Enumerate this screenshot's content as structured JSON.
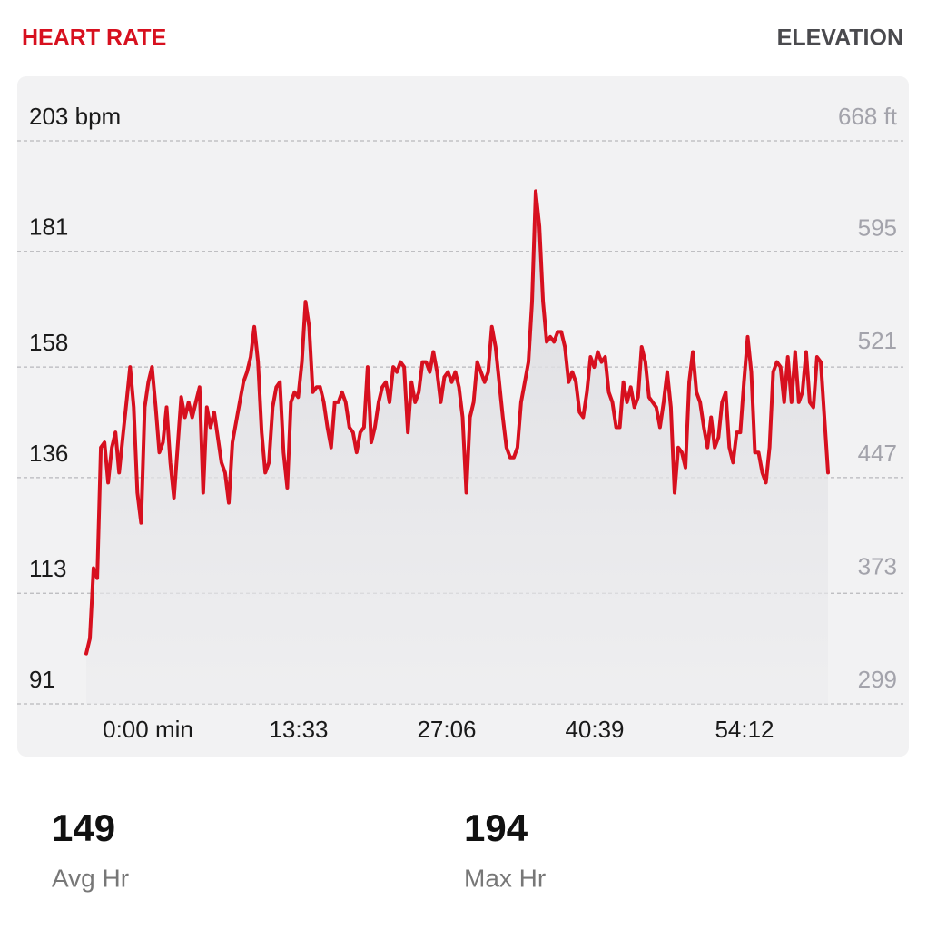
{
  "header": {
    "left_title": "HEART RATE",
    "right_title": "ELEVATION"
  },
  "chart_data": {
    "type": "line",
    "color": "#d7101f",
    "fill": true,
    "grid": true,
    "ylim": [
      91,
      203
    ],
    "yticks": [
      {
        "value": 203,
        "label": "203 bpm"
      },
      181,
      158,
      136,
      113,
      91
    ],
    "y2lim": [
      299,
      668
    ],
    "y2ticks": [
      {
        "value": 668,
        "label": "668 ft"
      },
      595,
      521,
      447,
      373,
      299
    ],
    "xtick_labels": [
      "0:00 min",
      "13:33",
      "27:06",
      "40:39",
      "54:12"
    ],
    "values": [
      101,
      104,
      118,
      116,
      142,
      143,
      135,
      142,
      145,
      137,
      144,
      151,
      158,
      150,
      133,
      127,
      150,
      155,
      158,
      150,
      141,
      143,
      150,
      139,
      132,
      142,
      152,
      148,
      151,
      148,
      151,
      154,
      133,
      150,
      146,
      149,
      144,
      139,
      137,
      131,
      143,
      147,
      151,
      155,
      157,
      160,
      166,
      159,
      145,
      137,
      139,
      150,
      154,
      155,
      141,
      134,
      151,
      153,
      152,
      159,
      171,
      166,
      153,
      154,
      154,
      151,
      146,
      142,
      151,
      151,
      153,
      151,
      146,
      145,
      141,
      145,
      146,
      158,
      143,
      146,
      151,
      154,
      155,
      151,
      158,
      157,
      159,
      158,
      145,
      155,
      151,
      153,
      159,
      159,
      157,
      161,
      157,
      151,
      156,
      157,
      155,
      157,
      154,
      148,
      133,
      148,
      151,
      159,
      157,
      155,
      157,
      166,
      162,
      155,
      148,
      142,
      140,
      140,
      142,
      151,
      155,
      159,
      171,
      193,
      186,
      171,
      163,
      164,
      163,
      165,
      165,
      162,
      155,
      157,
      155,
      149,
      148,
      153,
      160,
      158,
      161,
      159,
      160,
      153,
      151,
      146,
      146,
      155,
      151,
      154,
      150,
      152,
      162,
      159,
      152,
      151,
      150,
      146,
      151,
      157,
      150,
      133,
      142,
      141,
      138,
      155,
      161,
      153,
      151,
      146,
      142,
      148,
      142,
      144,
      151,
      153,
      142,
      139,
      145,
      145,
      155,
      164,
      157,
      141,
      141,
      137,
      135,
      142,
      157,
      159,
      158,
      151,
      160,
      151,
      161,
      151,
      153,
      161,
      151,
      150,
      160,
      159,
      148,
      137
    ]
  },
  "stats": [
    {
      "value": 149,
      "label": "Avg Hr"
    },
    {
      "value": 194,
      "label": "Max Hr"
    }
  ]
}
